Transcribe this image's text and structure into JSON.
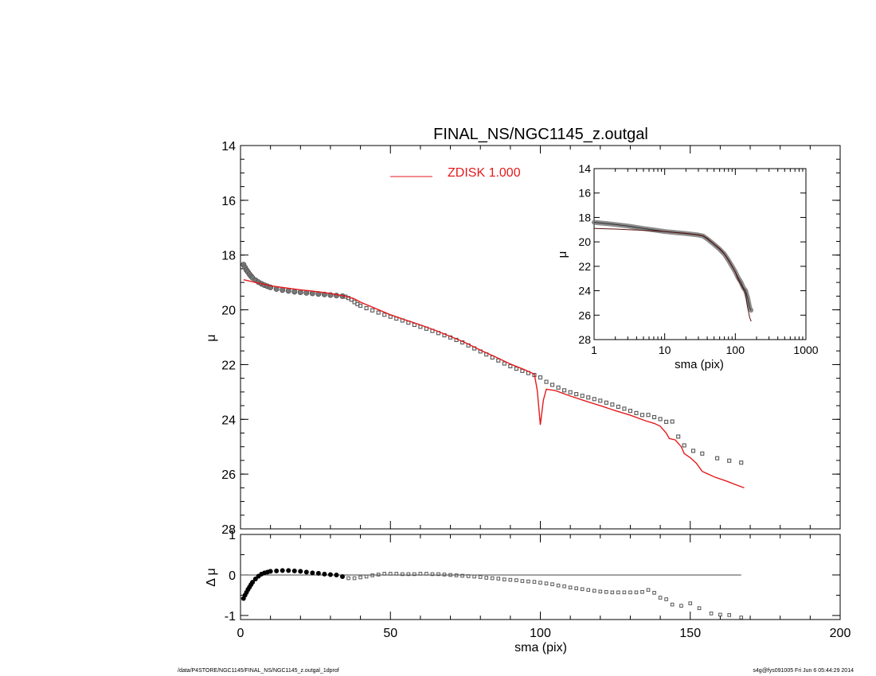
{
  "title": "FINAL_NS/NGC1145_z.outgal",
  "footer": {
    "left": "/data/P4STORE/NGC1145/FINAL_NS/NGC1145_z.outgal_1dprof",
    "right": "s4g@fys091005  Fri Jun  6 05:44:29 2014"
  },
  "colors": {
    "model": "#e31a1c",
    "data": "#555555",
    "axis": "#000000"
  },
  "chart_data": [
    {
      "name": "main-profile",
      "type": "scatter",
      "title": "FINAL_NS/NGC1145_z.outgal",
      "xlabel": "",
      "ylabel": "μ",
      "xlim": [
        0,
        200
      ],
      "ylim": [
        28,
        14
      ],
      "y_inverted": true,
      "xticks": [
        0,
        50,
        100,
        150,
        200
      ],
      "yticks": [
        14,
        16,
        18,
        20,
        22,
        24,
        26,
        28
      ],
      "ytick_labels": [
        "14",
        "16",
        "18",
        "20",
        "22",
        "24",
        "26",
        "28"
      ],
      "legend": {
        "entries": [
          {
            "label": "ZDISK  1.000",
            "color": "#e31a1c"
          }
        ],
        "placement": "top-center"
      },
      "series": [
        {
          "name": "data",
          "style": "points",
          "points": [
            [
              1,
              18.35
            ],
            [
              1.5,
              18.45
            ],
            [
              2,
              18.55
            ],
            [
              2.5,
              18.62
            ],
            [
              3,
              18.7
            ],
            [
              3.5,
              18.77
            ],
            [
              4,
              18.83
            ],
            [
              5,
              18.92
            ],
            [
              6,
              18.99
            ],
            [
              7,
              19.05
            ],
            [
              8,
              19.1
            ],
            [
              9,
              19.14
            ],
            [
              10,
              19.18
            ],
            [
              12,
              19.24
            ],
            [
              14,
              19.28
            ],
            [
              16,
              19.31
            ],
            [
              18,
              19.34
            ],
            [
              20,
              19.36
            ],
            [
              22,
              19.38
            ],
            [
              24,
              19.4
            ],
            [
              26,
              19.42
            ],
            [
              28,
              19.44
            ],
            [
              30,
              19.46
            ],
            [
              32,
              19.48
            ],
            [
              34,
              19.5
            ],
            [
              35,
              19.52
            ],
            [
              36,
              19.57
            ],
            [
              37,
              19.63
            ],
            [
              38,
              19.72
            ],
            [
              39,
              19.79
            ],
            [
              40,
              19.85
            ],
            [
              42,
              19.94
            ],
            [
              44,
              20.02
            ],
            [
              46,
              20.1
            ],
            [
              48,
              20.18
            ],
            [
              50,
              20.25
            ],
            [
              52,
              20.32
            ],
            [
              54,
              20.39
            ],
            [
              56,
              20.47
            ],
            [
              58,
              20.55
            ],
            [
              60,
              20.62
            ],
            [
              62,
              20.69
            ],
            [
              64,
              20.77
            ],
            [
              66,
              20.85
            ],
            [
              68,
              20.93
            ],
            [
              70,
              21.01
            ],
            [
              72,
              21.1
            ],
            [
              74,
              21.19
            ],
            [
              76,
              21.3
            ],
            [
              78,
              21.41
            ],
            [
              80,
              21.52
            ],
            [
              82,
              21.63
            ],
            [
              84,
              21.74
            ],
            [
              86,
              21.85
            ],
            [
              88,
              21.96
            ],
            [
              90,
              22.06
            ],
            [
              92,
              22.15
            ],
            [
              94,
              22.23
            ],
            [
              96,
              22.31
            ],
            [
              98,
              22.38
            ],
            [
              100,
              22.47
            ],
            [
              102,
              22.63
            ],
            [
              104,
              22.74
            ],
            [
              106,
              22.84
            ],
            [
              108,
              22.94
            ],
            [
              110,
              23.01
            ],
            [
              112,
              23.08
            ],
            [
              114,
              23.14
            ],
            [
              116,
              23.2
            ],
            [
              118,
              23.26
            ],
            [
              120,
              23.32
            ],
            [
              122,
              23.39
            ],
            [
              124,
              23.46
            ],
            [
              126,
              23.54
            ],
            [
              128,
              23.61
            ],
            [
              130,
              23.69
            ],
            [
              132,
              23.77
            ],
            [
              134,
              23.84
            ],
            [
              136,
              23.84
            ],
            [
              138,
              23.92
            ],
            [
              140,
              23.99
            ],
            [
              142,
              24.09
            ],
            [
              144,
              24.08
            ],
            [
              146,
              24.63
            ],
            [
              148,
              24.95
            ],
            [
              151,
              25.15
            ],
            [
              154,
              25.25
            ],
            [
              159,
              25.42
            ],
            [
              163,
              25.51
            ],
            [
              167,
              25.58
            ]
          ]
        },
        {
          "name": "ZDISK  1.000",
          "style": "line",
          "points": [
            [
              1,
              18.9
            ],
            [
              5,
              19.0
            ],
            [
              10,
              19.12
            ],
            [
              15,
              19.2
            ],
            [
              20,
              19.27
            ],
            [
              25,
              19.33
            ],
            [
              30,
              19.4
            ],
            [
              35,
              19.5
            ],
            [
              38,
              19.6
            ],
            [
              40,
              19.72
            ],
            [
              45,
              19.95
            ],
            [
              50,
              20.18
            ],
            [
              55,
              20.37
            ],
            [
              60,
              20.55
            ],
            [
              65,
              20.75
            ],
            [
              70,
              20.97
            ],
            [
              75,
              21.2
            ],
            [
              80,
              21.47
            ],
            [
              85,
              21.72
            ],
            [
              90,
              21.98
            ],
            [
              95,
              22.2
            ],
            [
              98,
              22.35
            ],
            [
              99,
              22.95
            ],
            [
              100,
              24.2
            ],
            [
              101,
              23.3
            ],
            [
              102,
              22.9
            ],
            [
              105,
              22.95
            ],
            [
              110,
              23.15
            ],
            [
              115,
              23.33
            ],
            [
              120,
              23.5
            ],
            [
              125,
              23.68
            ],
            [
              130,
              23.85
            ],
            [
              135,
              24.05
            ],
            [
              138,
              24.15
            ],
            [
              140,
              24.25
            ],
            [
              142,
              24.5
            ],
            [
              143,
              24.7
            ],
            [
              145,
              24.75
            ],
            [
              147,
              25.0
            ],
            [
              148,
              25.25
            ],
            [
              150,
              25.4
            ],
            [
              152,
              25.6
            ],
            [
              154,
              25.9
            ],
            [
              158,
              26.1
            ],
            [
              162,
              26.25
            ],
            [
              166,
              26.42
            ],
            [
              168,
              26.5
            ]
          ]
        }
      ]
    },
    {
      "name": "residuals",
      "type": "scatter",
      "xlabel": "sma (pix)",
      "ylabel": "Δ μ",
      "xlim": [
        0,
        200
      ],
      "ylim": [
        -1.1,
        1.0
      ],
      "xticks": [
        0,
        50,
        100,
        150,
        200
      ],
      "yticks": [
        -1,
        0,
        1
      ],
      "zero_line_x": [
        0,
        167
      ],
      "points": [
        [
          1,
          -0.58
        ],
        [
          1.5,
          -0.5
        ],
        [
          2,
          -0.43
        ],
        [
          2.5,
          -0.36
        ],
        [
          3,
          -0.3
        ],
        [
          3.5,
          -0.24
        ],
        [
          4,
          -0.18
        ],
        [
          5,
          -0.1
        ],
        [
          6,
          -0.03
        ],
        [
          7,
          0.02
        ],
        [
          8,
          0.05
        ],
        [
          9,
          0.07
        ],
        [
          10,
          0.09
        ],
        [
          12,
          0.1
        ],
        [
          14,
          0.11
        ],
        [
          16,
          0.11
        ],
        [
          18,
          0.1
        ],
        [
          20,
          0.09
        ],
        [
          22,
          0.07
        ],
        [
          24,
          0.05
        ],
        [
          26,
          0.04
        ],
        [
          28,
          0.02
        ],
        [
          30,
          0.01
        ],
        [
          32,
          0.0
        ],
        [
          34,
          -0.04
        ],
        [
          36,
          -0.08
        ],
        [
          38,
          -0.08
        ],
        [
          40,
          -0.06
        ],
        [
          42,
          -0.04
        ],
        [
          44,
          -0.01
        ],
        [
          46,
          0.01
        ],
        [
          48,
          0.03
        ],
        [
          50,
          0.03
        ],
        [
          52,
          0.03
        ],
        [
          54,
          0.02
        ],
        [
          56,
          0.02
        ],
        [
          58,
          0.02
        ],
        [
          60,
          0.03
        ],
        [
          62,
          0.03
        ],
        [
          64,
          0.02
        ],
        [
          66,
          0.02
        ],
        [
          68,
          0.01
        ],
        [
          70,
          0.0
        ],
        [
          72,
          -0.01
        ],
        [
          74,
          -0.02
        ],
        [
          76,
          -0.03
        ],
        [
          78,
          -0.04
        ],
        [
          80,
          -0.05
        ],
        [
          82,
          -0.07
        ],
        [
          84,
          -0.08
        ],
        [
          86,
          -0.09
        ],
        [
          88,
          -0.11
        ],
        [
          90,
          -0.12
        ],
        [
          92,
          -0.13
        ],
        [
          94,
          -0.15
        ],
        [
          96,
          -0.16
        ],
        [
          98,
          -0.17
        ],
        [
          100,
          -0.19
        ],
        [
          102,
          -0.21
        ],
        [
          104,
          -0.23
        ],
        [
          106,
          -0.26
        ],
        [
          108,
          -0.28
        ],
        [
          110,
          -0.31
        ],
        [
          112,
          -0.33
        ],
        [
          114,
          -0.35
        ],
        [
          116,
          -0.37
        ],
        [
          118,
          -0.39
        ],
        [
          120,
          -0.41
        ],
        [
          122,
          -0.42
        ],
        [
          124,
          -0.43
        ],
        [
          126,
          -0.43
        ],
        [
          128,
          -0.43
        ],
        [
          130,
          -0.43
        ],
        [
          132,
          -0.43
        ],
        [
          134,
          -0.42
        ],
        [
          136,
          -0.37
        ],
        [
          138,
          -0.44
        ],
        [
          140,
          -0.56
        ],
        [
          142,
          -0.6
        ],
        [
          144,
          -0.73
        ],
        [
          147,
          -0.76
        ],
        [
          150,
          -0.7
        ],
        [
          153,
          -0.82
        ],
        [
          157,
          -0.95
        ],
        [
          160,
          -0.98
        ],
        [
          163,
          -0.99
        ],
        [
          167,
          -1.05
        ]
      ]
    },
    {
      "name": "inset-log-profile",
      "type": "line",
      "xlabel": "sma (pix)",
      "ylabel": "μ",
      "x_scale": "log",
      "xlim": [
        1,
        1000
      ],
      "ylim": [
        28,
        14
      ],
      "y_inverted": true,
      "xticks": [
        1,
        10,
        100,
        1000
      ],
      "xtick_labels": [
        "1",
        "10",
        "100",
        "1000"
      ],
      "yticks": [
        14,
        16,
        18,
        20,
        22,
        24,
        26,
        28
      ],
      "series": [
        {
          "name": "data",
          "style": "thick-band",
          "points": [
            [
              1,
              18.4
            ],
            [
              1.5,
              18.5
            ],
            [
              2,
              18.58
            ],
            [
              3,
              18.7
            ],
            [
              4,
              18.82
            ],
            [
              5,
              18.9
            ],
            [
              7,
              19.02
            ],
            [
              10,
              19.15
            ],
            [
              15,
              19.25
            ],
            [
              20,
              19.32
            ],
            [
              25,
              19.38
            ],
            [
              30,
              19.44
            ],
            [
              35,
              19.52
            ],
            [
              40,
              19.75
            ],
            [
              50,
              20.2
            ],
            [
              60,
              20.6
            ],
            [
              70,
              21.0
            ],
            [
              80,
              21.5
            ],
            [
              90,
              22.0
            ],
            [
              100,
              22.45
            ],
            [
              110,
              22.95
            ],
            [
              120,
              23.3
            ],
            [
              130,
              23.75
            ],
            [
              140,
              24.0
            ],
            [
              150,
              24.6
            ],
            [
              160,
              25.4
            ],
            [
              167,
              25.6
            ]
          ]
        },
        {
          "name": "model",
          "style": "line",
          "points": [
            [
              1,
              18.9
            ],
            [
              2,
              18.95
            ],
            [
              3,
              19.0
            ],
            [
              5,
              19.05
            ],
            [
              10,
              19.15
            ],
            [
              20,
              19.3
            ],
            [
              30,
              19.42
            ],
            [
              35,
              19.5
            ],
            [
              40,
              19.7
            ],
            [
              50,
              20.18
            ],
            [
              60,
              20.55
            ],
            [
              70,
              20.97
            ],
            [
              80,
              21.47
            ],
            [
              90,
              21.98
            ],
            [
              100,
              22.45
            ],
            [
              110,
              23.1
            ],
            [
              120,
              23.5
            ],
            [
              130,
              23.85
            ],
            [
              140,
              24.25
            ],
            [
              150,
              25.4
            ],
            [
              160,
              26.2
            ],
            [
              168,
              26.5
            ]
          ]
        }
      ]
    }
  ]
}
